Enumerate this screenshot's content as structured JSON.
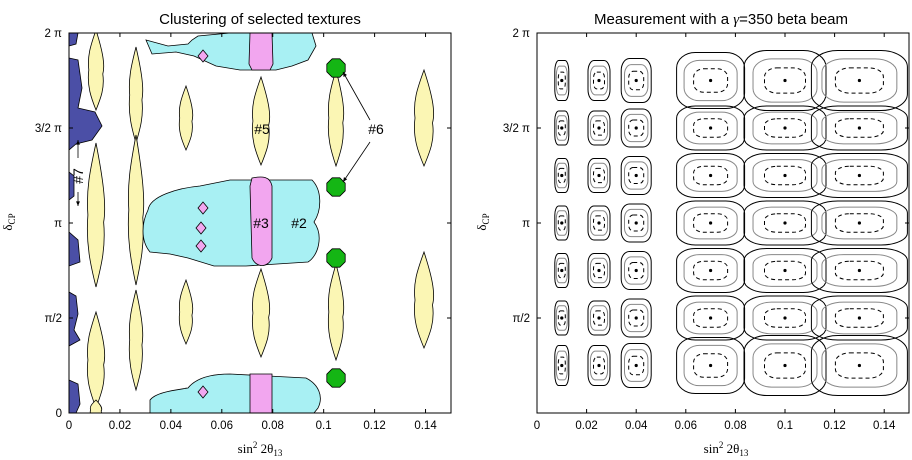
{
  "chart_data": [
    {
      "type": "contour",
      "title": "Clustering of selected textures",
      "xlabel": "sin² 2θ13",
      "ylabel": "δCP",
      "xlim": [
        0,
        0.15
      ],
      "ylim": [
        "0",
        "2π"
      ],
      "xticks": [
        "0",
        "0.02",
        "0.04",
        "0.06",
        "0.08",
        "0.1",
        "0.12",
        "0.14"
      ],
      "yticks": [
        "0",
        "π/2",
        "π",
        "3/2 π",
        "2 π"
      ],
      "annotations": [
        "#2",
        "#3",
        "#5",
        "#6",
        "#7"
      ],
      "colors": {
        "blue": "#4b4fa6",
        "yellow": "#fbf6b4",
        "cyan": "#a8f0f3",
        "pink": "#f2a6ef",
        "green": "#14b614"
      }
    },
    {
      "type": "contour",
      "title": "Measurement with a γ=350 beta beam",
      "xlabel": "sin² 2θ13",
      "ylabel": "δCP",
      "xlim": [
        0,
        0.15
      ],
      "ylim": [
        "0",
        "2π"
      ],
      "xticks": [
        "0",
        "0.02",
        "0.04",
        "0.06",
        "0.08",
        "0.1",
        "0.12",
        "0.14"
      ],
      "yticks": [
        "π/2",
        "π",
        "3/2 π",
        "2 π"
      ],
      "centers_x": [
        0.01,
        0.025,
        0.04,
        0.07,
        0.1,
        0.13
      ],
      "centers_y": [
        "π/4",
        "π/2",
        "3π/4",
        "π",
        "5π/4",
        "3π/2",
        "7π/4"
      ]
    }
  ]
}
